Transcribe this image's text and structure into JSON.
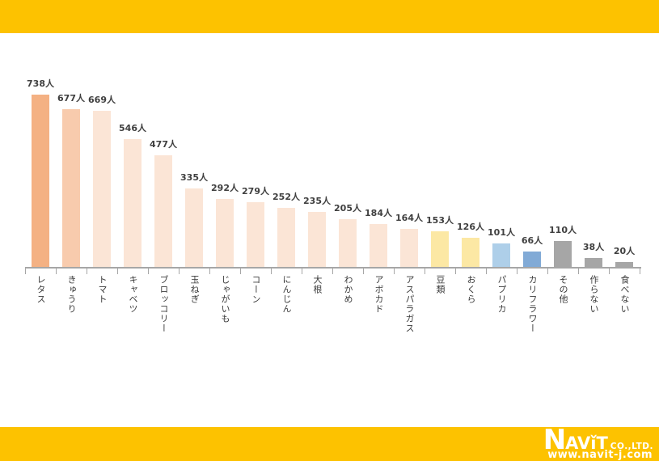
{
  "page": {
    "background": "#ffffff",
    "band_color": "#fdc200"
  },
  "chart_data": {
    "type": "bar",
    "title": "",
    "xlabel": "",
    "ylabel": "",
    "unit": "人",
    "categories": [
      "レタス",
      "きゅうり",
      "トマト",
      "キャベツ",
      "ブロッコリー",
      "玉ねぎ",
      "じゃがいも",
      "コーン",
      "にんじん",
      "大根",
      "わかめ",
      "アボカド",
      "アスパラガス",
      "豆類",
      "おくら",
      "パプリカ",
      "カリフラワー",
      "その他",
      "作らない",
      "食べない"
    ],
    "values": [
      738,
      677,
      669,
      546,
      477,
      335,
      292,
      279,
      252,
      235,
      205,
      184,
      164,
      153,
      126,
      101,
      66,
      110,
      38,
      20
    ],
    "value_labels": [
      "738人",
      "677人",
      "669人",
      "546人",
      "477人",
      "335人",
      "292人",
      "279人",
      "252人",
      "235人",
      "205人",
      "184人",
      "164人",
      "153人",
      "126人",
      "101人",
      "66人",
      "110人",
      "38人",
      "20人"
    ],
    "bar_colors": [
      "#f4b183",
      "#f8cbad",
      "#fbe5d6",
      "#fbe5d6",
      "#fbe5d6",
      "#fbe5d6",
      "#fbe5d6",
      "#fbe5d6",
      "#fbe5d6",
      "#fbe5d6",
      "#fbe5d6",
      "#fbe5d6",
      "#fbe5d6",
      "#fce8a4",
      "#fce8a4",
      "#aecfe9",
      "#81aad6",
      "#a6a6a6",
      "#a6a6a6",
      "#a6a6a6"
    ],
    "axis_color": "#a6a6a6",
    "label_color": "#3f3f3f",
    "ylim": [
      0,
      780
    ],
    "grid": false,
    "legend": false
  },
  "footer": {
    "logo": {
      "n": "N",
      "av": "AV",
      "i": "ǐ",
      "t": "T",
      "co_ltd": "CO.,LTD.",
      "url": "www.navit-j.com"
    }
  }
}
